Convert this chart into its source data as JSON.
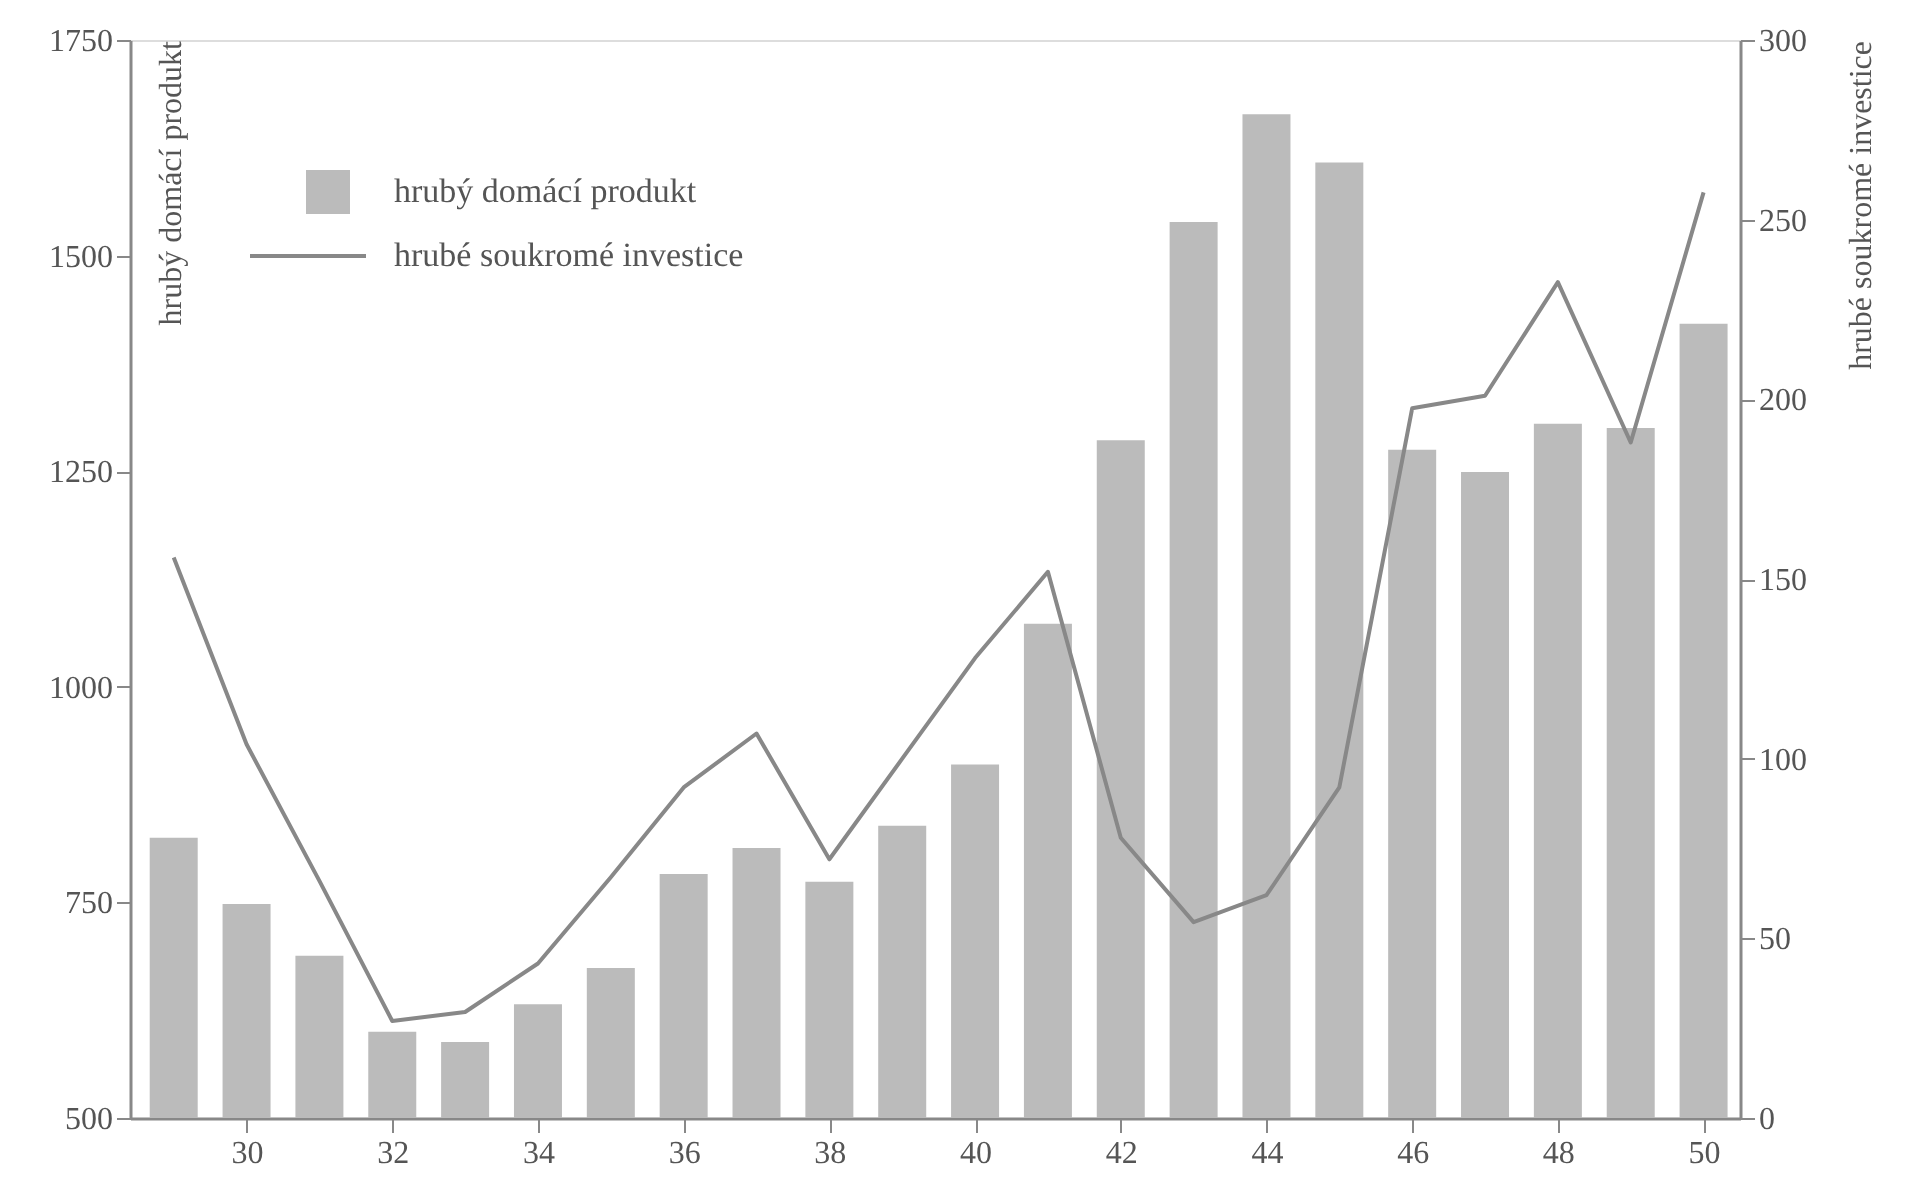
{
  "chart_data": {
    "type": "bar",
    "x": [
      29,
      30,
      31,
      32,
      33,
      34,
      35,
      36,
      37,
      38,
      39,
      40,
      41,
      42,
      43,
      44,
      45,
      46,
      47,
      48,
      49,
      50
    ],
    "series": [
      {
        "name": "hrubý domácí produkt",
        "color": "#bbbbbb",
        "values": [
          825,
          748,
          688,
          600,
          588,
          632,
          674,
          783,
          813,
          774,
          839,
          910,
          1073,
          1286,
          1539,
          1664,
          1608,
          1275,
          1249,
          1305,
          1300,
          1421
        ]
      },
      {
        "name": "hrubé soukromé investice",
        "type": "line",
        "axis": "y2",
        "color": "#888888",
        "values": [
          156,
          104,
          66,
          27,
          29.5,
          43,
          67,
          92,
          107,
          72,
          100,
          128,
          152,
          78,
          54.5,
          62,
          92,
          197.5,
          201,
          232.6,
          188,
          257.6
        ]
      }
    ],
    "ylabel": "hrubý domácí produkt",
    "y2label": "hrubé soukromé investice",
    "xlim": [
      28.4,
      50.5
    ],
    "xticks": [
      30,
      32,
      34,
      36,
      38,
      40,
      42,
      44,
      46,
      48,
      50
    ],
    "ylim": [
      500,
      1750
    ],
    "yticks": [
      500,
      750,
      1000,
      1250,
      1500,
      1750
    ],
    "y2lim": [
      0,
      300
    ],
    "y2ticks": [
      0,
      50,
      100,
      150,
      200,
      250,
      300
    ],
    "grid": false,
    "legend": "top left",
    "marker": "none",
    "line_style": "solid"
  }
}
